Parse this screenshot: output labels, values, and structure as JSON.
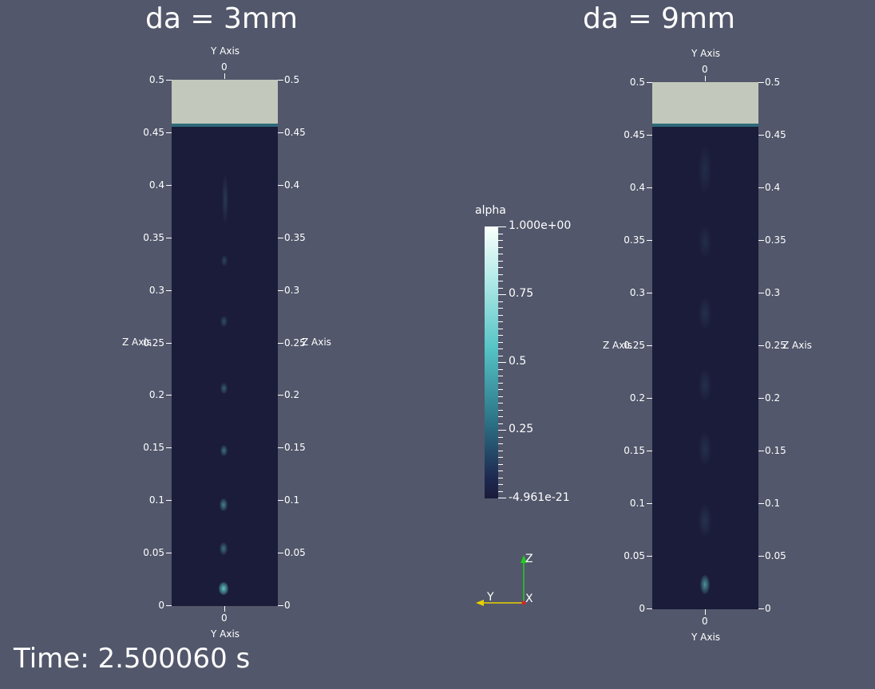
{
  "left_view": {
    "title": "da = 3mm",
    "top_axis_title": "Y Axis",
    "top_tick": "0",
    "bottom_axis_title": "Y Axis",
    "bottom_tick": "0",
    "left_axis_title": "Z Axis",
    "right_axis_title": "Z Axis",
    "z_ticks": [
      "0.5",
      "0.45",
      "0.4",
      "0.35",
      "0.3",
      "0.25",
      "0.2",
      "0.15",
      "0.1",
      "0.05",
      "0"
    ]
  },
  "right_view": {
    "title": "da = 9mm",
    "top_axis_title": "Y Axis",
    "top_tick": "0",
    "bottom_axis_title": "Y Axis",
    "bottom_tick": "0",
    "left_axis_title": "Z Axis",
    "right_axis_title": "Z Axis",
    "z_ticks": [
      "0.5",
      "0.45",
      "0.4",
      "0.35",
      "0.3",
      "0.25",
      "0.2",
      "0.15",
      "0.1",
      "0.05",
      "0"
    ]
  },
  "colorbar": {
    "title": "alpha",
    "max_label": "1.000e+00",
    "labels": [
      "0.75",
      "0.5",
      "0.25"
    ],
    "min_label": "-4.961e-21"
  },
  "orientation_axes": {
    "z": "Z",
    "y": "Y",
    "x": "X",
    "z_color": "#22cc22",
    "y_color": "#e8d000",
    "x_color": "#dd2222"
  },
  "time_text": "Time: 2.500060 s",
  "colors": {
    "background": "#52576b",
    "liquid": "#1b1b3a",
    "gas": "#c2c8bb",
    "bubble": "#5fc8c4"
  }
}
